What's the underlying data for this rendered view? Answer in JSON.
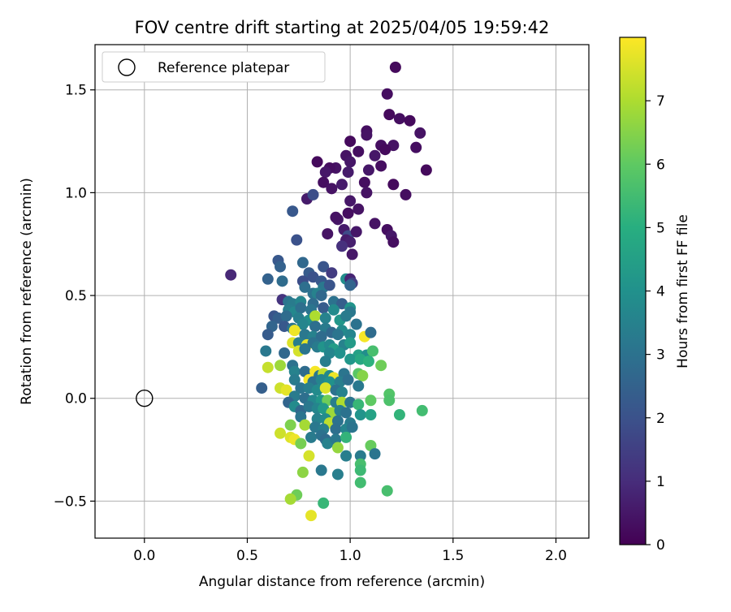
{
  "chart_data": {
    "type": "scatter",
    "title": "FOV centre drift starting at 2025/04/05 19:59:42",
    "xlabel": "Angular distance from reference (arcmin)",
    "ylabel": "Rotation from reference (arcmin)",
    "colorbar_label": "Hours from first FF file",
    "xlim": [
      -0.24,
      2.16
    ],
    "ylim": [
      -0.68,
      1.72
    ],
    "x_ticks": [
      0.0,
      0.5,
      1.0,
      1.5,
      2.0
    ],
    "x_tick_labels": [
      "0.0",
      "0.5",
      "1.0",
      "1.5",
      "2.0"
    ],
    "y_ticks": [
      -0.5,
      0.0,
      0.5,
      1.0,
      1.5
    ],
    "y_tick_labels": [
      "−0.5",
      "0.0",
      "0.5",
      "1.0",
      "1.5"
    ],
    "colorbar_range": [
      0,
      8
    ],
    "colorbar_ticks": [
      0,
      1,
      2,
      3,
      4,
      5,
      6,
      7
    ],
    "colorbar_tick_labels": [
      "0",
      "1",
      "2",
      "3",
      "4",
      "5",
      "6",
      "7"
    ],
    "colormap": "viridis",
    "grid": true,
    "legend": {
      "placement": "top-left",
      "entries": [
        "Reference platepar"
      ]
    },
    "reference_point": {
      "x": 0.0,
      "y": 0.0,
      "marker": "open-circle",
      "color": "#000000"
    },
    "points": [
      {
        "x": 1.22,
        "y": 1.61,
        "h": 0.2
      },
      {
        "x": 1.18,
        "y": 1.48,
        "h": 0.3
      },
      {
        "x": 1.19,
        "y": 1.38,
        "h": 0.2
      },
      {
        "x": 1.24,
        "y": 1.36,
        "h": 0.3
      },
      {
        "x": 1.29,
        "y": 1.35,
        "h": 0.2
      },
      {
        "x": 1.34,
        "y": 1.29,
        "h": 0.4
      },
      {
        "x": 1.32,
        "y": 1.22,
        "h": 0.3
      },
      {
        "x": 1.37,
        "y": 1.11,
        "h": 0.2
      },
      {
        "x": 1.21,
        "y": 1.23,
        "h": 0.4
      },
      {
        "x": 1.15,
        "y": 1.23,
        "h": 0.3
      },
      {
        "x": 1.17,
        "y": 1.21,
        "h": 0.2
      },
      {
        "x": 1.12,
        "y": 1.18,
        "h": 0.5
      },
      {
        "x": 1.08,
        "y": 1.3,
        "h": 0.3
      },
      {
        "x": 1.08,
        "y": 1.28,
        "h": 0.4
      },
      {
        "x": 1.0,
        "y": 1.25,
        "h": 0.2
      },
      {
        "x": 1.04,
        "y": 1.2,
        "h": 0.3
      },
      {
        "x": 0.98,
        "y": 1.18,
        "h": 0.4
      },
      {
        "x": 1.0,
        "y": 1.15,
        "h": 0.5
      },
      {
        "x": 0.99,
        "y": 1.1,
        "h": 0.6
      },
      {
        "x": 0.93,
        "y": 1.12,
        "h": 0.4
      },
      {
        "x": 0.9,
        "y": 1.12,
        "h": 0.3
      },
      {
        "x": 0.88,
        "y": 1.1,
        "h": 0.5
      },
      {
        "x": 0.84,
        "y": 1.15,
        "h": 0.2
      },
      {
        "x": 0.87,
        "y": 1.05,
        "h": 0.3
      },
      {
        "x": 0.91,
        "y": 1.02,
        "h": 0.4
      },
      {
        "x": 0.96,
        "y": 1.04,
        "h": 0.6
      },
      {
        "x": 1.07,
        "y": 1.05,
        "h": 0.3
      },
      {
        "x": 1.08,
        "y": 1.0,
        "h": 0.4
      },
      {
        "x": 1.09,
        "y": 1.11,
        "h": 0.5
      },
      {
        "x": 1.15,
        "y": 1.13,
        "h": 0.3
      },
      {
        "x": 1.21,
        "y": 1.04,
        "h": 0.2
      },
      {
        "x": 1.27,
        "y": 0.99,
        "h": 0.3
      },
      {
        "x": 1.0,
        "y": 0.96,
        "h": 0.5
      },
      {
        "x": 0.79,
        "y": 0.97,
        "h": 0.6
      },
      {
        "x": 0.82,
        "y": 0.99,
        "h": 1.9
      },
      {
        "x": 0.72,
        "y": 0.91,
        "h": 2.2
      },
      {
        "x": 1.04,
        "y": 0.92,
        "h": 0.4
      },
      {
        "x": 0.99,
        "y": 0.9,
        "h": 0.3
      },
      {
        "x": 0.94,
        "y": 0.87,
        "h": 0.5
      },
      {
        "x": 0.93,
        "y": 0.88,
        "h": 0.4
      },
      {
        "x": 0.97,
        "y": 0.82,
        "h": 0.6
      },
      {
        "x": 1.12,
        "y": 0.85,
        "h": 0.4
      },
      {
        "x": 1.18,
        "y": 0.82,
        "h": 0.3
      },
      {
        "x": 1.2,
        "y": 0.79,
        "h": 0.5
      },
      {
        "x": 1.21,
        "y": 0.76,
        "h": 0.3
      },
      {
        "x": 0.89,
        "y": 0.8,
        "h": 0.4
      },
      {
        "x": 0.99,
        "y": 0.79,
        "h": 1.8
      },
      {
        "x": 1.03,
        "y": 0.81,
        "h": 0.5
      },
      {
        "x": 0.98,
        "y": 0.77,
        "h": 0.6
      },
      {
        "x": 1.0,
        "y": 0.76,
        "h": 0.7
      },
      {
        "x": 0.96,
        "y": 0.74,
        "h": 1.1
      },
      {
        "x": 0.74,
        "y": 0.77,
        "h": 2.0
      },
      {
        "x": 1.01,
        "y": 0.7,
        "h": 0.5
      },
      {
        "x": 0.42,
        "y": 0.6,
        "h": 0.9
      },
      {
        "x": 0.65,
        "y": 0.67,
        "h": 2.2
      },
      {
        "x": 0.66,
        "y": 0.64,
        "h": 2.5
      },
      {
        "x": 0.77,
        "y": 0.66,
        "h": 2.7
      },
      {
        "x": 0.87,
        "y": 0.64,
        "h": 2.1
      },
      {
        "x": 0.91,
        "y": 0.61,
        "h": 1.4
      },
      {
        "x": 0.8,
        "y": 0.61,
        "h": 2.3
      },
      {
        "x": 0.82,
        "y": 0.59,
        "h": 2.0
      },
      {
        "x": 0.6,
        "y": 0.58,
        "h": 2.5
      },
      {
        "x": 0.67,
        "y": 0.57,
        "h": 2.8
      },
      {
        "x": 0.77,
        "y": 0.57,
        "h": 1.9
      },
      {
        "x": 0.86,
        "y": 0.57,
        "h": 2.2
      },
      {
        "x": 0.98,
        "y": 0.58,
        "h": 3.9
      },
      {
        "x": 1.0,
        "y": 0.58,
        "h": 0.8
      },
      {
        "x": 1.01,
        "y": 0.56,
        "h": 1.5
      },
      {
        "x": 0.78,
        "y": 0.54,
        "h": 2.9
      },
      {
        "x": 0.87,
        "y": 0.54,
        "h": 3.2
      },
      {
        "x": 0.9,
        "y": 0.55,
        "h": 2.1
      },
      {
        "x": 1.0,
        "y": 0.55,
        "h": 2.6
      },
      {
        "x": 0.82,
        "y": 0.51,
        "h": 3.0
      },
      {
        "x": 0.84,
        "y": 0.51,
        "h": 3.5
      },
      {
        "x": 0.86,
        "y": 0.5,
        "h": 2.7
      },
      {
        "x": 0.67,
        "y": 0.48,
        "h": 1.2
      },
      {
        "x": 0.7,
        "y": 0.47,
        "h": 3.1
      },
      {
        "x": 0.72,
        "y": 0.46,
        "h": 3.3
      },
      {
        "x": 0.76,
        "y": 0.47,
        "h": 3.6
      },
      {
        "x": 0.82,
        "y": 0.46,
        "h": 2.8
      },
      {
        "x": 0.92,
        "y": 0.47,
        "h": 3.0
      },
      {
        "x": 0.96,
        "y": 0.46,
        "h": 2.4
      },
      {
        "x": 1.0,
        "y": 0.44,
        "h": 4.1
      },
      {
        "x": 0.7,
        "y": 0.43,
        "h": 3.4
      },
      {
        "x": 0.73,
        "y": 0.42,
        "h": 3.7
      },
      {
        "x": 0.76,
        "y": 0.44,
        "h": 2.9
      },
      {
        "x": 0.81,
        "y": 0.43,
        "h": 3.1
      },
      {
        "x": 0.87,
        "y": 0.44,
        "h": 2.3
      },
      {
        "x": 0.92,
        "y": 0.43,
        "h": 3.8
      },
      {
        "x": 1.0,
        "y": 0.42,
        "h": 3.2
      },
      {
        "x": 0.63,
        "y": 0.4,
        "h": 2.1
      },
      {
        "x": 0.65,
        "y": 0.39,
        "h": 2.4
      },
      {
        "x": 0.69,
        "y": 0.4,
        "h": 2.8
      },
      {
        "x": 0.75,
        "y": 0.39,
        "h": 3.4
      },
      {
        "x": 0.8,
        "y": 0.38,
        "h": 3.9
      },
      {
        "x": 0.83,
        "y": 0.4,
        "h": 7.0
      },
      {
        "x": 0.88,
        "y": 0.39,
        "h": 3.5
      },
      {
        "x": 0.95,
        "y": 0.38,
        "h": 4.2
      },
      {
        "x": 0.98,
        "y": 0.4,
        "h": 3.3
      },
      {
        "x": 1.03,
        "y": 0.36,
        "h": 3.0
      },
      {
        "x": 0.62,
        "y": 0.35,
        "h": 2.6
      },
      {
        "x": 0.68,
        "y": 0.35,
        "h": 2.2
      },
      {
        "x": 0.72,
        "y": 0.34,
        "h": 3.1
      },
      {
        "x": 0.77,
        "y": 0.36,
        "h": 3.6
      },
      {
        "x": 0.83,
        "y": 0.35,
        "h": 2.9
      },
      {
        "x": 0.88,
        "y": 0.34,
        "h": 3.3
      },
      {
        "x": 0.91,
        "y": 0.32,
        "h": 2.7
      },
      {
        "x": 0.96,
        "y": 0.33,
        "h": 3.8
      },
      {
        "x": 0.6,
        "y": 0.31,
        "h": 2.3
      },
      {
        "x": 0.73,
        "y": 0.33,
        "h": 7.8
      },
      {
        "x": 0.78,
        "y": 0.31,
        "h": 3.2
      },
      {
        "x": 0.82,
        "y": 0.3,
        "h": 3.5
      },
      {
        "x": 0.86,
        "y": 0.3,
        "h": 2.8
      },
      {
        "x": 0.94,
        "y": 0.31,
        "h": 3.1
      },
      {
        "x": 1.0,
        "y": 0.31,
        "h": 3.6
      },
      {
        "x": 1.07,
        "y": 0.3,
        "h": 7.9
      },
      {
        "x": 1.1,
        "y": 0.32,
        "h": 2.8
      },
      {
        "x": 0.72,
        "y": 0.27,
        "h": 7.6
      },
      {
        "x": 0.75,
        "y": 0.27,
        "h": 3.4
      },
      {
        "x": 0.79,
        "y": 0.26,
        "h": 7.7
      },
      {
        "x": 0.82,
        "y": 0.27,
        "h": 3.0
      },
      {
        "x": 0.84,
        "y": 0.25,
        "h": 3.3
      },
      {
        "x": 0.87,
        "y": 0.25,
        "h": 4.1
      },
      {
        "x": 0.9,
        "y": 0.26,
        "h": 3.7
      },
      {
        "x": 0.92,
        "y": 0.24,
        "h": 4.4
      },
      {
        "x": 0.97,
        "y": 0.26,
        "h": 3.5
      },
      {
        "x": 1.0,
        "y": 0.27,
        "h": 4.3
      },
      {
        "x": 0.59,
        "y": 0.23,
        "h": 3.2
      },
      {
        "x": 0.68,
        "y": 0.22,
        "h": 2.7
      },
      {
        "x": 0.75,
        "y": 0.23,
        "h": 7.5
      },
      {
        "x": 0.78,
        "y": 0.24,
        "h": 3.1
      },
      {
        "x": 0.9,
        "y": 0.22,
        "h": 3.6
      },
      {
        "x": 0.95,
        "y": 0.22,
        "h": 4.0
      },
      {
        "x": 1.04,
        "y": 0.21,
        "h": 4.5
      },
      {
        "x": 1.08,
        "y": 0.21,
        "h": 3.9
      },
      {
        "x": 1.11,
        "y": 0.23,
        "h": 5.6
      },
      {
        "x": 0.88,
        "y": 0.18,
        "h": 3.4
      },
      {
        "x": 1.0,
        "y": 0.19,
        "h": 4.2
      },
      {
        "x": 1.05,
        "y": 0.19,
        "h": 4.8
      },
      {
        "x": 1.09,
        "y": 0.18,
        "h": 5.1
      },
      {
        "x": 1.15,
        "y": 0.16,
        "h": 6.2
      },
      {
        "x": 0.66,
        "y": 0.16,
        "h": 6.8
      },
      {
        "x": 0.6,
        "y": 0.15,
        "h": 7.3
      },
      {
        "x": 0.72,
        "y": 0.16,
        "h": 3.0
      },
      {
        "x": 0.73,
        "y": 0.13,
        "h": 3.5
      },
      {
        "x": 0.78,
        "y": 0.13,
        "h": 2.8
      },
      {
        "x": 0.83,
        "y": 0.13,
        "h": 7.9
      },
      {
        "x": 0.85,
        "y": 0.11,
        "h": 3.2
      },
      {
        "x": 0.87,
        "y": 0.12,
        "h": 7.2
      },
      {
        "x": 0.9,
        "y": 0.11,
        "h": 3.7
      },
      {
        "x": 0.92,
        "y": 0.1,
        "h": 7.8
      },
      {
        "x": 0.97,
        "y": 0.12,
        "h": 3.1
      },
      {
        "x": 1.04,
        "y": 0.12,
        "h": 5.9
      },
      {
        "x": 1.06,
        "y": 0.11,
        "h": 6.5
      },
      {
        "x": 0.73,
        "y": 0.09,
        "h": 3.3
      },
      {
        "x": 0.8,
        "y": 0.09,
        "h": 7.9
      },
      {
        "x": 0.82,
        "y": 0.08,
        "h": 3.0
      },
      {
        "x": 0.86,
        "y": 0.09,
        "h": 3.6
      },
      {
        "x": 0.9,
        "y": 0.08,
        "h": 4.0
      },
      {
        "x": 0.95,
        "y": 0.08,
        "h": 3.4
      },
      {
        "x": 0.99,
        "y": 0.09,
        "h": 2.9
      },
      {
        "x": 0.57,
        "y": 0.05,
        "h": 2.4
      },
      {
        "x": 0.66,
        "y": 0.05,
        "h": 7.4
      },
      {
        "x": 0.69,
        "y": 0.04,
        "h": 7.7
      },
      {
        "x": 0.76,
        "y": 0.05,
        "h": 3.1
      },
      {
        "x": 0.8,
        "y": 0.05,
        "h": 3.4
      },
      {
        "x": 0.84,
        "y": 0.04,
        "h": 3.8
      },
      {
        "x": 0.88,
        "y": 0.05,
        "h": 7.6
      },
      {
        "x": 0.93,
        "y": 0.04,
        "h": 3.0
      },
      {
        "x": 0.96,
        "y": 0.03,
        "h": 3.5
      },
      {
        "x": 1.04,
        "y": 0.06,
        "h": 3.2
      },
      {
        "x": 1.19,
        "y": 0.02,
        "h": 5.8
      },
      {
        "x": 0.73,
        "y": 0.01,
        "h": 3.3
      },
      {
        "x": 0.78,
        "y": 0.0,
        "h": 2.9
      },
      {
        "x": 0.82,
        "y": -0.01,
        "h": 3.7
      },
      {
        "x": 0.86,
        "y": -0.01,
        "h": 4.2
      },
      {
        "x": 0.89,
        "y": -0.01,
        "h": 6.2
      },
      {
        "x": 0.93,
        "y": -0.02,
        "h": 3.4
      },
      {
        "x": 0.96,
        "y": -0.02,
        "h": 7.0
      },
      {
        "x": 1.0,
        "y": -0.02,
        "h": 3.1
      },
      {
        "x": 1.04,
        "y": -0.03,
        "h": 5.3
      },
      {
        "x": 1.1,
        "y": -0.01,
        "h": 6.0
      },
      {
        "x": 1.19,
        "y": -0.01,
        "h": 5.7
      },
      {
        "x": 0.7,
        "y": -0.02,
        "h": 2.6
      },
      {
        "x": 0.73,
        "y": -0.04,
        "h": 3.8
      },
      {
        "x": 0.76,
        "y": -0.06,
        "h": 2.7
      },
      {
        "x": 0.8,
        "y": -0.04,
        "h": 3.2
      },
      {
        "x": 0.84,
        "y": -0.05,
        "h": 3.6
      },
      {
        "x": 0.87,
        "y": -0.05,
        "h": 4.3
      },
      {
        "x": 0.91,
        "y": -0.07,
        "h": 6.8
      },
      {
        "x": 0.95,
        "y": -0.06,
        "h": 3.4
      },
      {
        "x": 0.98,
        "y": -0.07,
        "h": 3.0
      },
      {
        "x": 1.05,
        "y": -0.08,
        "h": 4.1
      },
      {
        "x": 1.1,
        "y": -0.08,
        "h": 4.6
      },
      {
        "x": 1.24,
        "y": -0.08,
        "h": 5.2
      },
      {
        "x": 1.35,
        "y": -0.06,
        "h": 5.5
      },
      {
        "x": 0.76,
        "y": -0.09,
        "h": 3.1
      },
      {
        "x": 0.84,
        "y": -0.1,
        "h": 3.5
      },
      {
        "x": 0.88,
        "y": -0.1,
        "h": 3.8
      },
      {
        "x": 0.9,
        "y": -0.12,
        "h": 7.2
      },
      {
        "x": 0.94,
        "y": -0.11,
        "h": 3.0
      },
      {
        "x": 1.0,
        "y": -0.12,
        "h": 3.3
      },
      {
        "x": 0.71,
        "y": -0.13,
        "h": 6.4
      },
      {
        "x": 0.78,
        "y": -0.13,
        "h": 6.9
      },
      {
        "x": 0.83,
        "y": -0.14,
        "h": 3.2
      },
      {
        "x": 0.87,
        "y": -0.15,
        "h": 3.4
      },
      {
        "x": 0.93,
        "y": -0.15,
        "h": 2.9
      },
      {
        "x": 0.98,
        "y": -0.15,
        "h": 3.6
      },
      {
        "x": 1.01,
        "y": -0.14,
        "h": 3.1
      },
      {
        "x": 0.66,
        "y": -0.17,
        "h": 7.4
      },
      {
        "x": 0.71,
        "y": -0.19,
        "h": 7.6
      },
      {
        "x": 0.73,
        "y": -0.2,
        "h": 7.8
      },
      {
        "x": 0.76,
        "y": -0.22,
        "h": 6.3
      },
      {
        "x": 0.81,
        "y": -0.19,
        "h": 3.3
      },
      {
        "x": 0.86,
        "y": -0.18,
        "h": 3.0
      },
      {
        "x": 0.88,
        "y": -0.2,
        "h": 2.8
      },
      {
        "x": 0.89,
        "y": -0.22,
        "h": 3.5
      },
      {
        "x": 0.93,
        "y": -0.2,
        "h": 3.2
      },
      {
        "x": 0.98,
        "y": -0.19,
        "h": 5.2
      },
      {
        "x": 1.1,
        "y": -0.23,
        "h": 6.1
      },
      {
        "x": 0.94,
        "y": -0.24,
        "h": 6.7
      },
      {
        "x": 0.8,
        "y": -0.28,
        "h": 7.5
      },
      {
        "x": 0.98,
        "y": -0.28,
        "h": 3.4
      },
      {
        "x": 1.05,
        "y": -0.28,
        "h": 3.3
      },
      {
        "x": 1.12,
        "y": -0.27,
        "h": 3.1
      },
      {
        "x": 1.05,
        "y": -0.32,
        "h": 5.6
      },
      {
        "x": 0.77,
        "y": -0.36,
        "h": 6.6
      },
      {
        "x": 0.86,
        "y": -0.35,
        "h": 3.2
      },
      {
        "x": 0.94,
        "y": -0.37,
        "h": 3.4
      },
      {
        "x": 1.05,
        "y": -0.35,
        "h": 5.4
      },
      {
        "x": 1.05,
        "y": -0.41,
        "h": 5.5
      },
      {
        "x": 1.18,
        "y": -0.45,
        "h": 5.6
      },
      {
        "x": 0.74,
        "y": -0.47,
        "h": 6.2
      },
      {
        "x": 0.71,
        "y": -0.49,
        "h": 6.9
      },
      {
        "x": 0.87,
        "y": -0.51,
        "h": 5.3
      },
      {
        "x": 0.81,
        "y": -0.57,
        "h": 7.7
      }
    ]
  }
}
